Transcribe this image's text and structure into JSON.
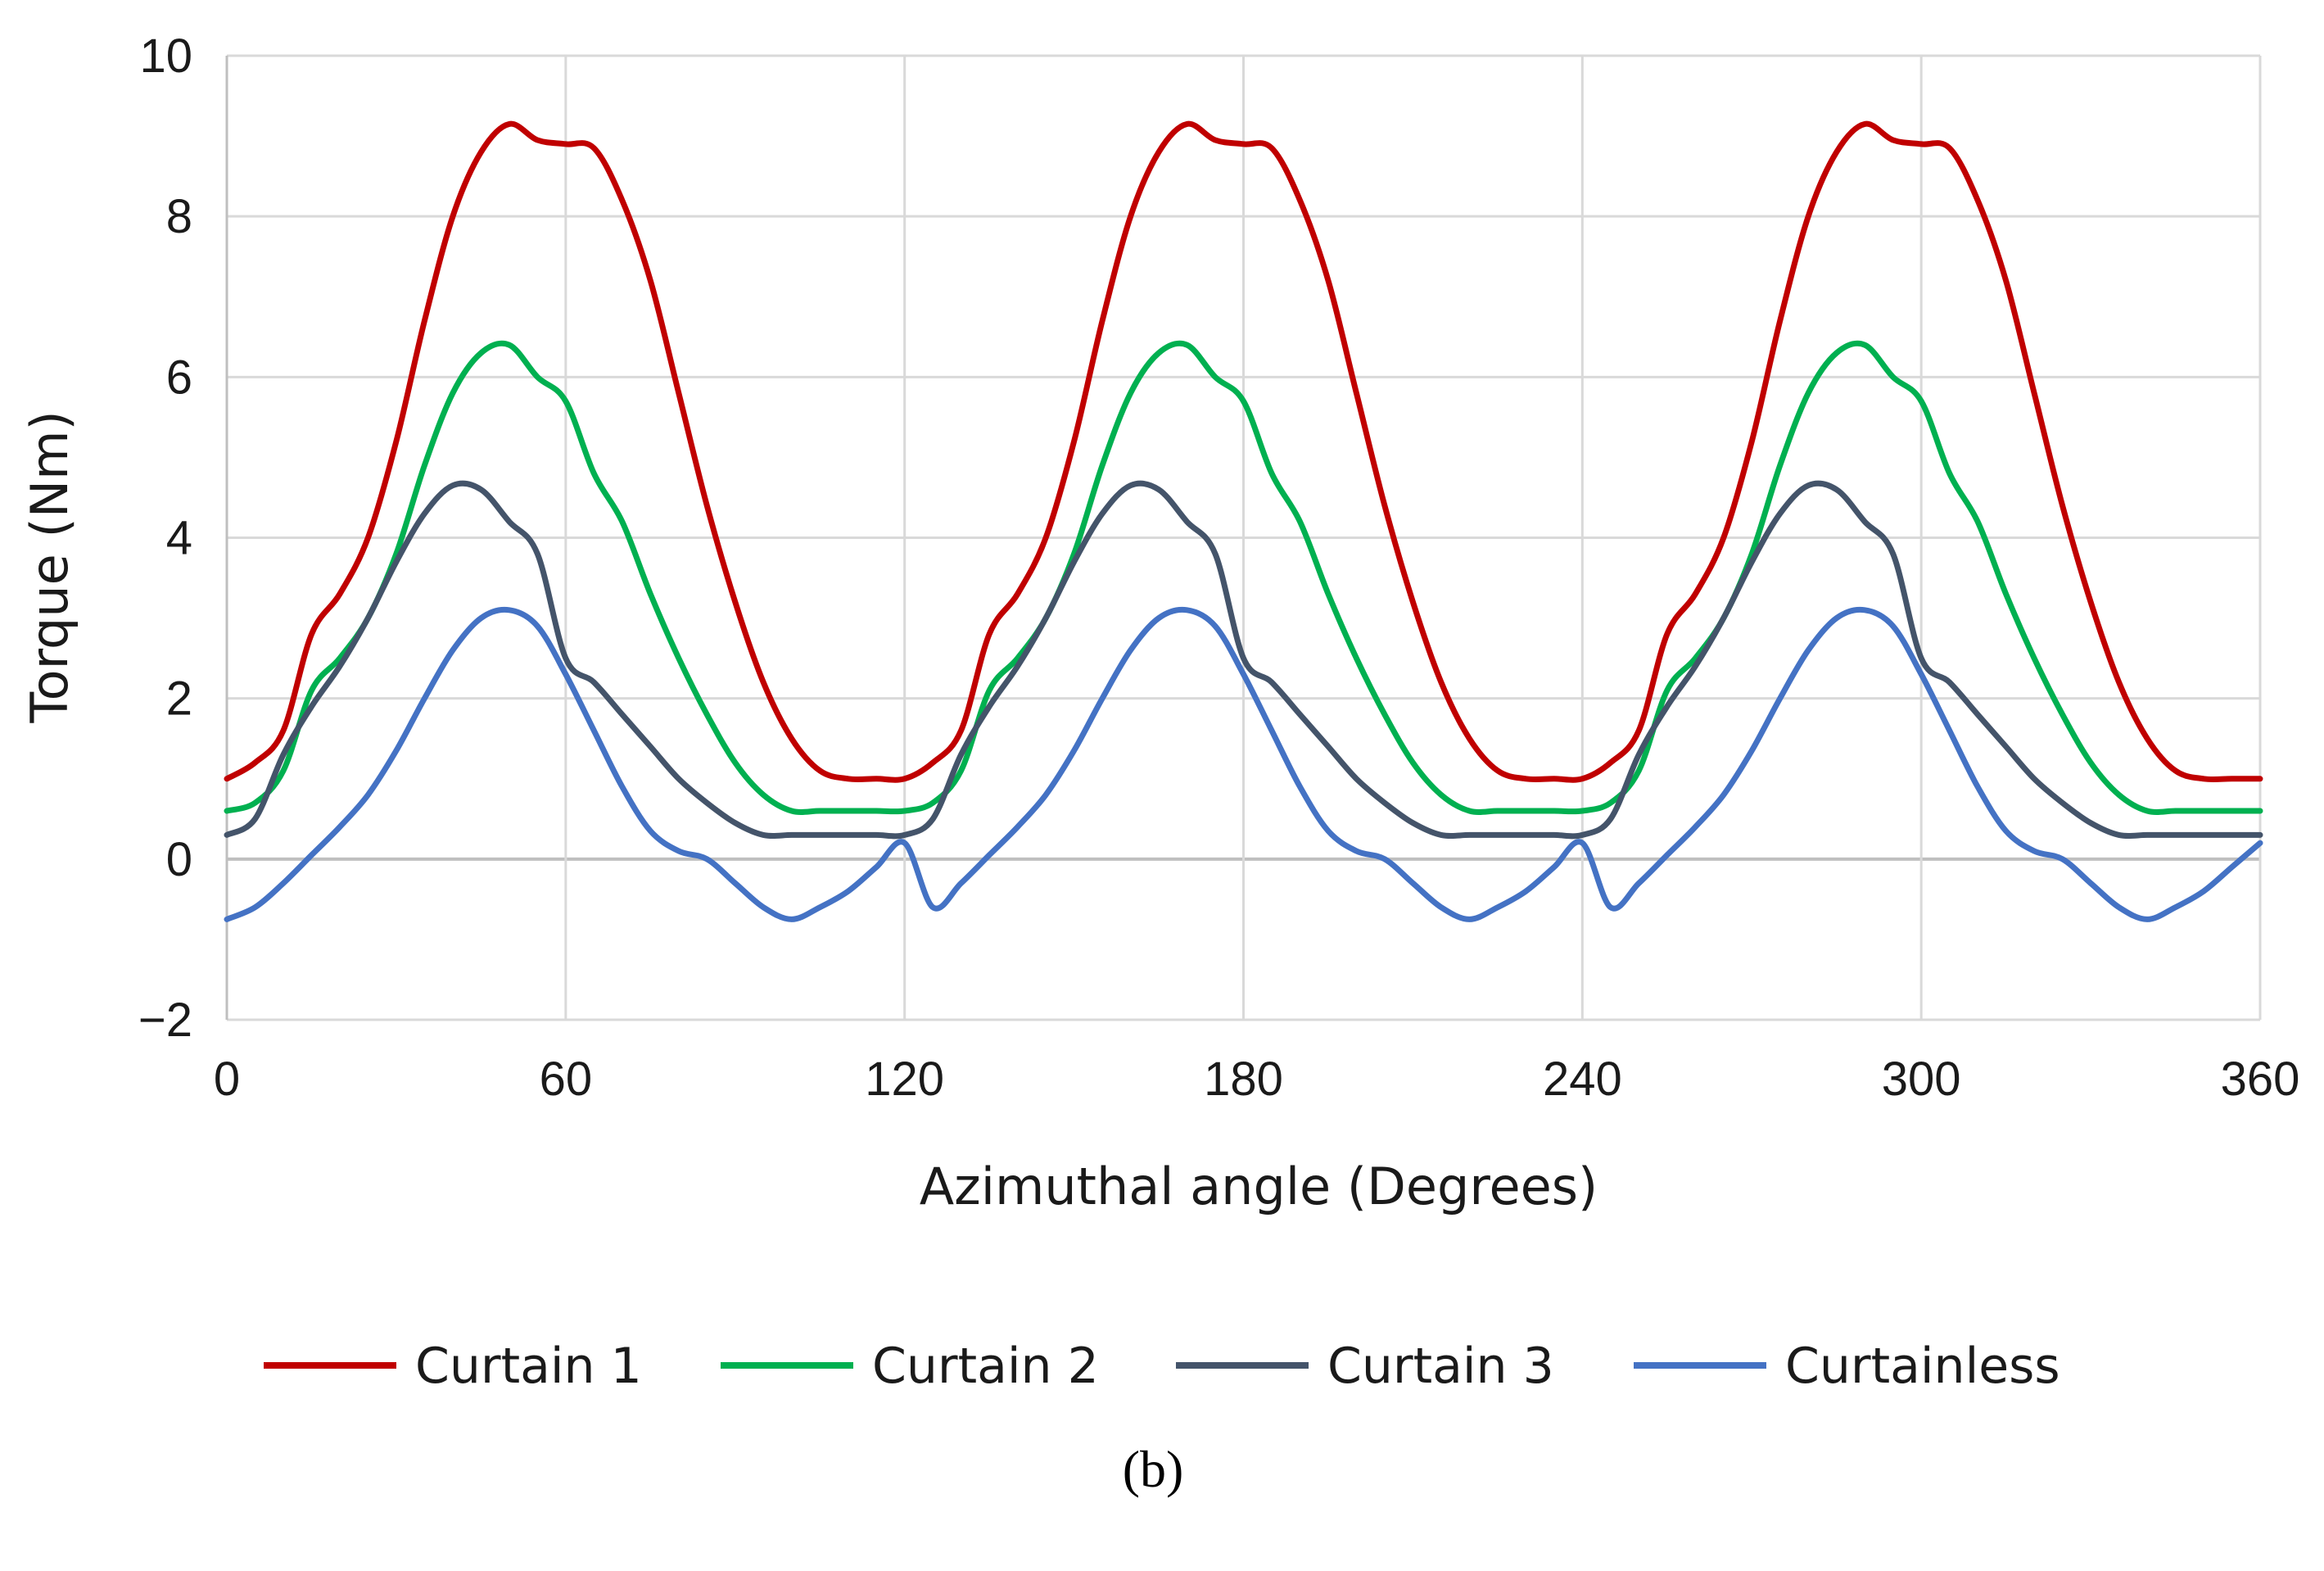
{
  "chart_data": {
    "type": "line",
    "title": "",
    "xlabel": "Azimuthal angle (Degrees)",
    "ylabel": "Torque (Nm)",
    "xlim": [
      0,
      360
    ],
    "ylim": [
      -2,
      10
    ],
    "xticks": [
      0,
      60,
      120,
      180,
      240,
      300,
      360
    ],
    "xtick_labels": [
      "0",
      "60",
      "120",
      "180",
      "240",
      "300",
      "360"
    ],
    "yticks": [
      -2,
      0,
      2,
      4,
      6,
      8,
      10
    ],
    "ytick_labels": [
      "−2",
      "0",
      "2",
      "4",
      "6",
      "8",
      "10"
    ],
    "grid": true,
    "legend_position": "bottom",
    "panel_label": "(b)",
    "x": [
      0,
      5,
      10,
      15,
      20,
      25,
      30,
      35,
      40,
      45,
      50,
      55,
      60,
      65,
      70,
      75,
      80,
      85,
      90,
      95,
      100,
      105,
      110,
      115,
      120
    ],
    "period_deg": 120,
    "series": [
      {
        "name": "Curtain 1",
        "color": "#c00000",
        "values": [
          1.0,
          1.2,
          1.6,
          2.8,
          3.3,
          4.0,
          5.2,
          6.7,
          8.0,
          8.8,
          9.15,
          8.95,
          8.9,
          8.85,
          8.2,
          7.2,
          5.8,
          4.4,
          3.2,
          2.2,
          1.5,
          1.1,
          1.0,
          1.0,
          1.0
        ]
      },
      {
        "name": "Curtain 2",
        "color": "#00b050",
        "values": [
          0.6,
          0.7,
          1.1,
          2.1,
          2.5,
          3.0,
          3.8,
          4.9,
          5.8,
          6.3,
          6.4,
          6.0,
          5.7,
          4.8,
          4.2,
          3.3,
          2.5,
          1.8,
          1.2,
          0.8,
          0.6,
          0.6,
          0.6,
          0.6,
          0.6
        ]
      },
      {
        "name": "Curtain 3",
        "color": "#44546a",
        "values": [
          0.3,
          0.5,
          1.3,
          1.9,
          2.4,
          3.0,
          3.7,
          4.3,
          4.65,
          4.6,
          4.2,
          3.8,
          2.5,
          2.2,
          1.8,
          1.4,
          1.0,
          0.7,
          0.45,
          0.3,
          0.3,
          0.3,
          0.3,
          0.3,
          0.3
        ]
      },
      {
        "name": "Curtainless",
        "color": "#4472c4",
        "values": [
          -0.75,
          -0.6,
          -0.3,
          0.05,
          0.4,
          0.8,
          1.35,
          2.0,
          2.6,
          3.0,
          3.1,
          2.9,
          2.3,
          1.6,
          0.9,
          0.35,
          0.1,
          0.0,
          -0.3,
          -0.6,
          -0.75,
          -0.6,
          -0.4,
          -0.1,
          0.2
        ]
      }
    ]
  }
}
